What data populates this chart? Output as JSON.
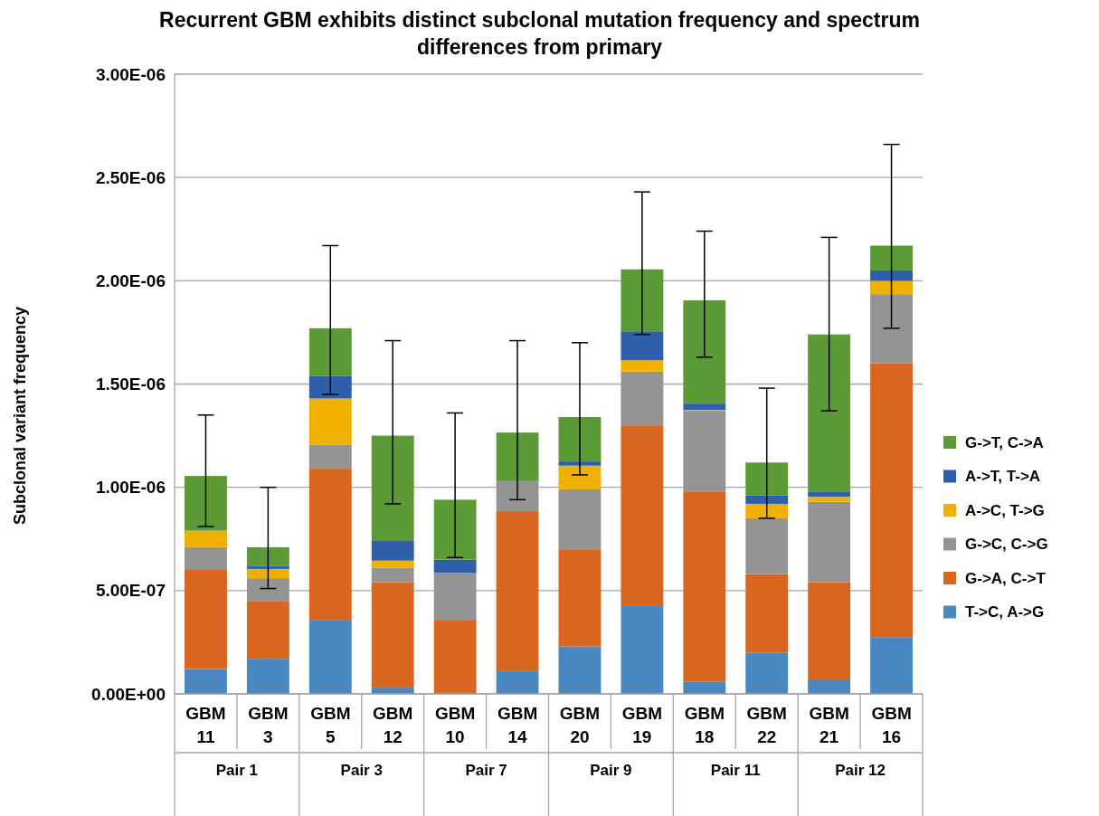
{
  "chart_data": {
    "type": "bar",
    "stacked": true,
    "title": "Recurrent GBM exhibits distinct subclonal mutation frequency and spectrum differences from primary",
    "ylabel": "Subclonal variant frequency",
    "categories": [
      "GBM 11",
      "GBM 3",
      "GBM 5",
      "GBM 12",
      "GBM 10",
      "GBM 14",
      "GBM 20",
      "GBM 19",
      "GBM 18",
      "GBM 22",
      "GBM 21",
      "GBM 16"
    ],
    "annotations": [
      "Pair 1",
      "Pair 3",
      "Pair 7",
      "Pair 9",
      "Pair 11",
      "Pair 12"
    ],
    "ylim": [
      0,
      3e-06
    ],
    "yticks": [
      {
        "value": 0,
        "label": "0.00E+00"
      },
      {
        "value": 5e-07,
        "label": "5.00E-07"
      },
      {
        "value": 1e-06,
        "label": "1.00E-06"
      },
      {
        "value": 1.5e-06,
        "label": "1.50E-06"
      },
      {
        "value": 2e-06,
        "label": "2.00E-06"
      },
      {
        "value": 2.5e-06,
        "label": "2.50E-06"
      },
      {
        "value": 3e-06,
        "label": "3.00E-06"
      }
    ],
    "grid": "y",
    "legend": "right",
    "series": [
      {
        "name": "T->C, A->G",
        "color": "#4a88c2",
        "values": [
          1.2e-07,
          1.7e-07,
          3.55e-07,
          3e-08,
          0,
          1.1e-07,
          2.3e-07,
          4.25e-07,
          6e-08,
          2e-07,
          7e-08,
          2.75e-07
        ]
      },
      {
        "name": "G->A, C->T",
        "color": "#d9661f",
        "values": [
          4.8e-07,
          2.8e-07,
          7.35e-07,
          5.1e-07,
          3.55e-07,
          7.75e-07,
          4.7e-07,
          8.75e-07,
          9.2e-07,
          3.8e-07,
          4.7e-07,
          1.325e-06
        ]
      },
      {
        "name": "G->C, C->G",
        "color": "#949494",
        "values": [
          1.1e-07,
          1.1e-07,
          1.15e-07,
          7e-08,
          2.3e-07,
          1.45e-07,
          2.9e-07,
          2.6e-07,
          3.9e-07,
          2.7e-07,
          3.9e-07,
          3.35e-07
        ]
      },
      {
        "name": "A->C, T->G",
        "color": "#efb000",
        "values": [
          8e-08,
          4.5e-08,
          2.25e-07,
          3.5e-08,
          0,
          0,
          1.15e-07,
          5.5e-08,
          5e-09,
          7e-08,
          2.5e-08,
          6.5e-08
        ]
      },
      {
        "name": "A->T, T->A",
        "color": "#2f5eaa",
        "values": [
          0,
          1.5e-08,
          1.1e-07,
          9.5e-08,
          6.5e-08,
          0,
          2e-08,
          1.4e-07,
          3e-08,
          4e-08,
          2.5e-08,
          5e-08
        ]
      },
      {
        "name": "G->T, C->A",
        "color": "#5b9a35",
        "values": [
          2.65e-07,
          9e-08,
          2.3e-07,
          5.1e-07,
          2.9e-07,
          2.35e-07,
          2.15e-07,
          3e-07,
          5e-07,
          1.6e-07,
          7.6e-07,
          1.2e-07
        ],
        "errors": [
          [
            8.1e-07,
            1.35e-06
          ],
          [
            5.1e-07,
            1e-06
          ],
          [
            1.45e-06,
            2.17e-06
          ],
          [
            9.2e-07,
            1.71e-06
          ],
          [
            6.6e-07,
            1.36e-06
          ],
          [
            9.4e-07,
            1.71e-06
          ],
          [
            1.06e-06,
            1.7e-06
          ],
          [
            1.74e-06,
            2.43e-06
          ],
          [
            1.63e-06,
            2.24e-06
          ],
          [
            8.5e-07,
            1.48e-06
          ],
          [
            1.37e-06,
            2.21e-06
          ],
          [
            1.77e-06,
            2.66e-06
          ]
        ]
      }
    ]
  }
}
